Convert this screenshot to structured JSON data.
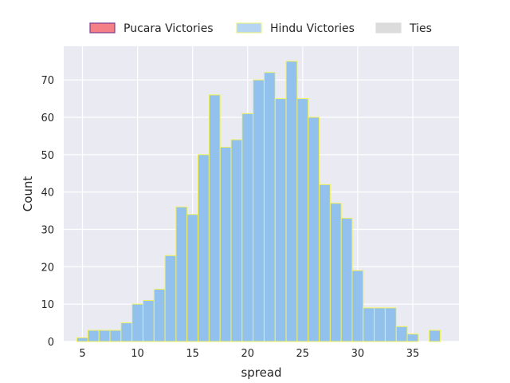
{
  "chart_data": {
    "type": "bar",
    "xlabel": "spread",
    "ylabel": "Count",
    "xlim": [
      3.3,
      39.2
    ],
    "ylim": [
      0,
      79
    ],
    "xticks": [
      5,
      10,
      15,
      20,
      25,
      30,
      35
    ],
    "yticks": [
      0,
      10,
      20,
      30,
      40,
      50,
      60,
      70
    ],
    "grid": true,
    "legend_position": "top-center, above plot",
    "legend": [
      {
        "label": "Pucara Victories",
        "fill": "#f47f86",
        "edge": "#7a3f8f"
      },
      {
        "label": "Hindu Victories",
        "fill": "#b5d5f2",
        "edge": "#e8f28a"
      },
      {
        "label": "Ties",
        "fill": "#dcdcdc",
        "edge": "#dcdcdc"
      }
    ],
    "series": [
      {
        "name": "Hindu Victories",
        "bin_width": 1,
        "x": [
          5,
          6,
          7,
          8,
          9,
          10,
          11,
          12,
          13,
          14,
          15,
          16,
          17,
          18,
          19,
          20,
          21,
          22,
          23,
          24,
          25,
          26,
          27,
          28,
          29,
          30,
          31,
          32,
          33,
          34,
          35,
          37
        ],
        "values": [
          1,
          3,
          3,
          3,
          5,
          10,
          11,
          14,
          23,
          36,
          34,
          50,
          66,
          52,
          54,
          61,
          70,
          72,
          65,
          75,
          65,
          60,
          42,
          37,
          33,
          19,
          9,
          9,
          9,
          4,
          2,
          3
        ]
      }
    ],
    "colors": {
      "plot_bg": "#eaeaf2",
      "grid": "#ffffff",
      "bar_fill": "#92c1ee",
      "bar_edge": "#f2f25a"
    }
  }
}
